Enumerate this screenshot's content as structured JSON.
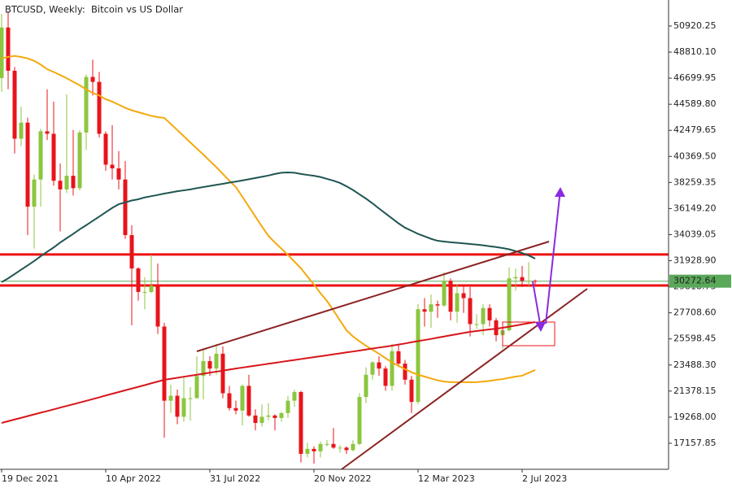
{
  "chart_data": {
    "type": "candlestick",
    "title": "BTCUSD, Weekly:  Bitcoin vs US Dollar",
    "categories": [
      "19 Dec 2021",
      null,
      null,
      null,
      null,
      null,
      null,
      null,
      null,
      null,
      null,
      null,
      null,
      null,
      null,
      null,
      "10 Apr 2022",
      null,
      null,
      null,
      null,
      null,
      null,
      null,
      null,
      null,
      null,
      null,
      null,
      null,
      null,
      null,
      "31 Jul 2022",
      null,
      null,
      null,
      null,
      null,
      null,
      null,
      null,
      null,
      null,
      null,
      null,
      null,
      null,
      null,
      "20 Nov 2022",
      null,
      null,
      null,
      null,
      null,
      null,
      null,
      null,
      null,
      null,
      null,
      null,
      null,
      null,
      null,
      "12 Mar 2023",
      null,
      null,
      null,
      null,
      null,
      null,
      null,
      null,
      null,
      null,
      null,
      null,
      null,
      null,
      null,
      "2 Jul 2023",
      null,
      null
    ],
    "open": [
      46700,
      50800,
      47300,
      41800,
      43100,
      36300,
      38500,
      42400,
      42200,
      38400,
      37700,
      38800,
      37800,
      42300,
      46800,
      46400,
      42200,
      39700,
      39400,
      38500,
      34000,
      31300,
      29400,
      29400,
      29900,
      26600,
      20600,
      21000,
      19300,
      20800,
      20800,
      22600,
      23800,
      23200,
      24400,
      21200,
      20000,
      19800,
      21800,
      19400,
      18800,
      19300,
      19400,
      19200,
      19600,
      20600,
      21300,
      16300,
      16700,
      16500,
      17100,
      17100,
      16800,
      16800,
      16600,
      17100,
      20900,
      22700,
      23700,
      23200,
      21800,
      24600,
      23600,
      22300,
      20500,
      28000,
      27800,
      28400,
      28300,
      30300,
      27800,
      29300,
      28900,
      26800,
      26800,
      28100,
      27100,
      25900,
      26300,
      30500,
      30600,
      30300,
      30300
    ],
    "high": [
      51900,
      52100,
      47600,
      44400,
      43500,
      38900,
      42600,
      45800,
      44800,
      39800,
      45400,
      42500,
      42500,
      47000,
      48200,
      47200,
      42400,
      42900,
      40800,
      40000,
      34800,
      31400,
      30600,
      32400,
      31700,
      26900,
      21900,
      21500,
      22500,
      21700,
      24200,
      24700,
      24200,
      25200,
      25000,
      21800,
      20600,
      21900,
      22700,
      19900,
      20300,
      20400,
      19500,
      19700,
      21000,
      21500,
      21400,
      17200,
      16900,
      17300,
      17400,
      18400,
      17000,
      16900,
      17400,
      21200,
      23300,
      23800,
      24200,
      23400,
      25200,
      25200,
      23900,
      22600,
      28400,
      28900,
      29200,
      28700,
      31000,
      30500,
      30000,
      29900,
      29800,
      27600,
      28400,
      28400,
      27300,
      26800,
      31400,
      31300,
      31500,
      31800,
      30400
    ],
    "low": [
      45600,
      45800,
      40600,
      41200,
      34000,
      32900,
      36300,
      41700,
      38000,
      34300,
      37400,
      37200,
      37600,
      40900,
      45300,
      41900,
      39200,
      38500,
      37700,
      33700,
      26700,
      28700,
      28000,
      29300,
      26000,
      17600,
      19600,
      18700,
      18900,
      19000,
      20800,
      20700,
      22600,
      22700,
      20800,
      19800,
      19500,
      18600,
      19300,
      18200,
      18500,
      19000,
      18200,
      18900,
      19200,
      20100,
      15600,
      16000,
      15500,
      16000,
      16900,
      16700,
      16400,
      16300,
      16500,
      17000,
      20400,
      22300,
      22600,
      21400,
      21400,
      23400,
      21900,
      19600,
      20300,
      26600,
      26500,
      27300,
      28200,
      27100,
      26900,
      27700,
      25800,
      26400,
      25900,
      26600,
      25400,
      24800,
      26200,
      29500,
      29800,
      29900,
      29900
    ],
    "close": [
      50800,
      47300,
      41800,
      43100,
      36300,
      38500,
      42400,
      42200,
      38400,
      37700,
      38800,
      37800,
      42300,
      46800,
      46400,
      42200,
      39700,
      39400,
      38500,
      34000,
      31300,
      29400,
      29400,
      29900,
      26600,
      20600,
      21000,
      19300,
      20800,
      20800,
      22600,
      23800,
      23200,
      24400,
      21200,
      20000,
      19800,
      21800,
      19400,
      18800,
      19300,
      19400,
      19200,
      19600,
      20600,
      21300,
      16300,
      16700,
      16500,
      17100,
      17100,
      16800,
      16800,
      16600,
      17100,
      20900,
      22700,
      23700,
      23200,
      21800,
      24600,
      23600,
      22300,
      20500,
      28000,
      27800,
      28400,
      28300,
      30300,
      27800,
      29300,
      28900,
      26800,
      26800,
      28100,
      27100,
      25900,
      26300,
      30500,
      30600,
      30300,
      30300,
      30272.64
    ],
    "up_color": "#8cc63f",
    "down_color": "#e8141b",
    "indicators": [
      {
        "color": "#f4a90c",
        "values": [
          48300,
          48420,
          48500,
          48420,
          48300,
          48100,
          47800,
          47430,
          47200,
          46950,
          46700,
          46400,
          46120,
          45800,
          45500,
          45300,
          45000,
          44800,
          44550,
          44300,
          44100,
          43950,
          43800,
          43650,
          43550,
          43480,
          43000,
          42500,
          42000,
          41500,
          41000,
          40520,
          40000,
          39500,
          38950,
          38400,
          37890,
          37100,
          36300,
          35500,
          34700,
          33940,
          33400,
          32900,
          32400,
          31850,
          31310,
          30650,
          30000,
          29300,
          28670,
          27900,
          27100,
          26300,
          25800,
          25400,
          25050,
          24720,
          24400,
          24050,
          23700,
          23410,
          23150,
          22900,
          22700,
          22550,
          22400,
          22250,
          22150,
          22100,
          22100,
          22100,
          22090,
          22100,
          22150,
          22200,
          22290,
          22350,
          22450,
          22550,
          22620,
          22850,
          23080
        ]
      },
      {
        "color": "#1f5552",
        "values": [
          30190,
          30500,
          30850,
          31200,
          31550,
          31900,
          32290,
          32650,
          33000,
          33400,
          33750,
          34100,
          34470,
          34800,
          35150,
          35500,
          35850,
          36200,
          36500,
          36650,
          36800,
          36900,
          37050,
          37150,
          37250,
          37360,
          37450,
          37550,
          37620,
          37700,
          37800,
          37890,
          37980,
          38070,
          38150,
          38250,
          38330,
          38420,
          38520,
          38620,
          38720,
          38820,
          38950,
          39050,
          39070,
          39050,
          38950,
          38870,
          38800,
          38700,
          38550,
          38400,
          38220,
          37950,
          37650,
          37300,
          36950,
          36570,
          36150,
          35750,
          35350,
          34950,
          34600,
          34350,
          34100,
          33900,
          33700,
          33540,
          33480,
          33420,
          33380,
          33330,
          33280,
          33230,
          33170,
          33100,
          33030,
          32950,
          32850,
          32700,
          32550,
          32350,
          32100
        ]
      },
      {
        "color": "#d8151b",
        "values": [
          18800,
          18940,
          19080,
          19210,
          19350,
          19490,
          19630,
          19760,
          19900,
          20040,
          20180,
          20310,
          20450,
          20590,
          20730,
          20870,
          21020,
          21160,
          21300,
          21440,
          21580,
          21720,
          21860,
          22010,
          22150,
          22290,
          22370,
          22450,
          22540,
          22620,
          22700,
          22780,
          22870,
          22950,
          23030,
          23120,
          23200,
          23280,
          23360,
          23430,
          23510,
          23590,
          23660,
          23740,
          23820,
          23890,
          23970,
          24050,
          24120,
          24200,
          24270,
          24350,
          24430,
          24510,
          24580,
          24660,
          24740,
          24820,
          24900,
          24970,
          25050,
          25140,
          25230,
          25330,
          25420,
          25510,
          25600,
          25700,
          25790,
          25890,
          25980,
          26080,
          26170,
          26240,
          26300,
          26370,
          26430,
          26500,
          26590,
          26680,
          26780,
          26870,
          26960
        ]
      }
    ],
    "levels": [
      32430,
      29920
    ],
    "level_color": "#ee1111",
    "last_price": 30272.64,
    "last_price_color": "#5aa85a",
    "ylim": [
      15048,
      53026
    ],
    "yticks": [
      {
        "value": 17157.85,
        "label": "17157.85"
      },
      {
        "value": 19268,
        "label": "19268.00"
      },
      21378.15,
      {
        "value": 23488.3,
        "label": "23488.30"
      },
      25598.45,
      {
        "value": 27708.6,
        "label": "27708.60"
      },
      29818.75,
      {
        "value": 31928.9,
        "label": "31928.90"
      },
      34039.05,
      {
        "value": 36149.2,
        "label": "36149.20"
      },
      38259.35,
      {
        "value": 40369.5,
        "label": "40369.50"
      },
      42479.65,
      {
        "value": 44589.8,
        "label": "44589.80"
      },
      46699.95,
      {
        "value": 48810.1,
        "label": "48810.10"
      },
      50920.25
    ]
  }
}
